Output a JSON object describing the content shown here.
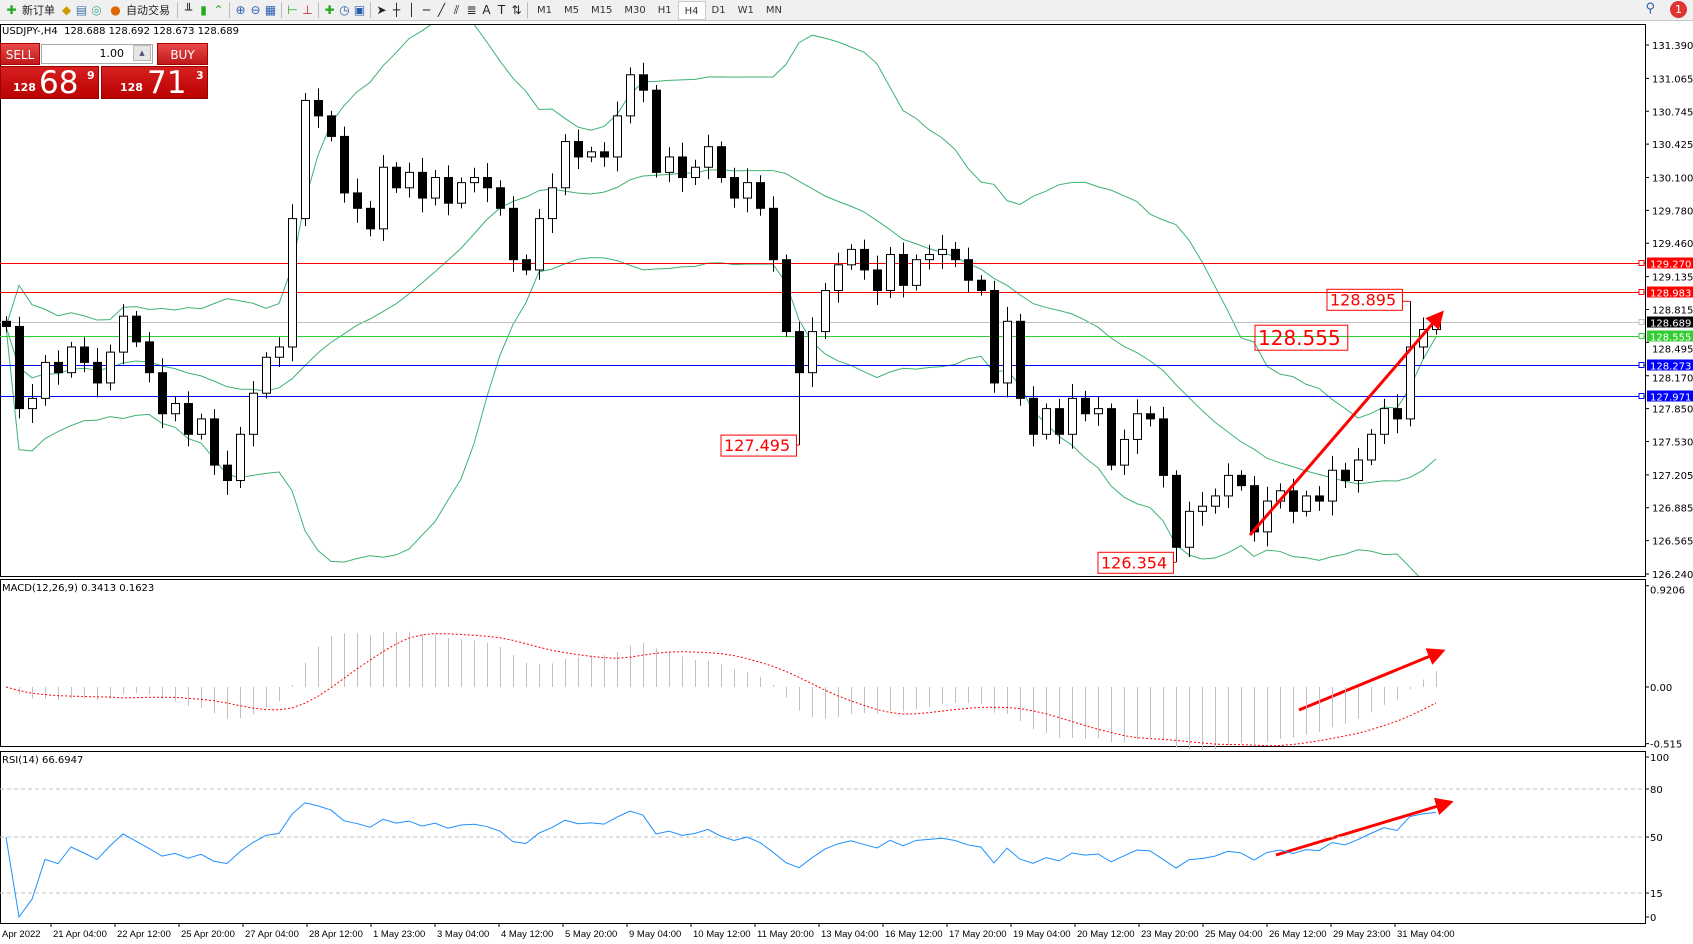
{
  "toolbar": {
    "new_order": "新订单",
    "auto_trading": "自动交易",
    "timeframes": [
      "M1",
      "M5",
      "M15",
      "M30",
      "H1",
      "H4",
      "D1",
      "W1",
      "MN"
    ],
    "active_timeframe": "H4",
    "notifications": "1"
  },
  "chart_header": "USDJPY-,H4  128.688 128.692 128.673 128.689",
  "one_click": {
    "sell": "SELL",
    "buy": "BUY",
    "lot": "1.00",
    "sell_price": {
      "big": "128",
      "main": "68",
      "pip": "9"
    },
    "buy_price": {
      "big": "128",
      "main": "71",
      "pip": "3"
    }
  },
  "chart_data": {
    "type": "candlestick",
    "symbol": "USDJPY-",
    "timeframe": "H4",
    "price_axis": {
      "ticks": [
        "131.390",
        "131.065",
        "130.745",
        "130.425",
        "130.100",
        "129.780",
        "129.460",
        "129.135",
        "128.815",
        "128.495",
        "128.170",
        "127.850",
        "127.530",
        "127.205",
        "126.885",
        "126.565",
        "126.240"
      ],
      "range": [
        126.24,
        131.39
      ]
    },
    "closes": [
      128.65,
      127.85,
      127.95,
      128.3,
      128.2,
      128.45,
      128.3,
      128.1,
      128.4,
      128.75,
      128.5,
      128.2,
      127.8,
      127.9,
      127.6,
      127.75,
      127.3,
      127.15,
      127.6,
      128.0,
      128.35,
      128.45,
      129.7,
      130.85,
      130.7,
      130.5,
      129.95,
      129.8,
      129.6,
      130.2,
      130.0,
      130.15,
      129.9,
      130.1,
      129.85,
      130.05,
      130.1,
      130.0,
      129.8,
      129.3,
      129.2,
      129.7,
      130.0,
      130.45,
      130.3,
      130.35,
      130.3,
      130.7,
      131.1,
      130.95,
      130.15,
      130.3,
      130.1,
      130.2,
      130.4,
      130.1,
      129.9,
      130.05,
      129.8,
      129.3,
      128.6,
      128.2,
      128.6,
      129.0,
      129.25,
      129.4,
      129.2,
      129.0,
      129.35,
      129.05,
      129.3,
      129.35,
      129.4,
      129.3,
      129.1,
      129.0,
      128.1,
      128.7,
      127.95,
      127.6,
      127.85,
      127.6,
      127.95,
      127.8,
      127.85,
      127.3,
      127.55,
      127.8,
      127.75,
      127.2,
      126.5,
      126.85,
      126.9,
      127.0,
      127.2,
      127.1,
      126.65,
      126.95,
      127.05,
      126.85,
      127.0,
      126.95,
      127.25,
      127.15,
      127.35,
      127.6,
      127.85,
      127.75,
      128.45,
      128.62,
      128.689
    ],
    "indicators": [
      "Bollinger Bands",
      "MACD(12,26,9)",
      "RSI(14)"
    ],
    "hlines": [
      {
        "price": "129.270",
        "color": "#ff0000"
      },
      {
        "price": "128.983",
        "color": "#ff0000"
      },
      {
        "price": "128.689",
        "color": "#c0c0c0",
        "label_bg": "#000000"
      },
      {
        "price": "128.555",
        "color": "#32cd32"
      },
      {
        "price": "128.273",
        "color": "#0000ff"
      },
      {
        "price": "127.971",
        "color": "#0000ff"
      }
    ],
    "annotations": [
      {
        "text": "128.895",
        "candle": 108,
        "kind": "high"
      },
      {
        "text": "128.555",
        "kind": "line"
      },
      {
        "text": "127.495",
        "candle": 61,
        "kind": "low"
      },
      {
        "text": "126.354",
        "candle": 90,
        "kind": "low"
      }
    ],
    "macd": {
      "label": "MACD(12,26,9) 0.3413 0.1623",
      "ticks": [
        "0.9206",
        "0.00",
        "-0.515"
      ],
      "range": [
        -0.515,
        0.9206
      ]
    },
    "rsi": {
      "label": "RSI(14) 66.6947",
      "ticks": [
        "100",
        "80",
        "50",
        "15",
        "0"
      ],
      "levels": [
        80,
        50,
        15
      ]
    },
    "time_labels": [
      "Apr 2022",
      "21 Apr 04:00",
      "22 Apr 12:00",
      "25 Apr 20:00",
      "27 Apr 04:00",
      "28 Apr 12:00",
      "1 May 23:00",
      "3 May 04:00",
      "4 May 12:00",
      "5 May 20:00",
      "9 May 04:00",
      "10 May 12:00",
      "11 May 20:00",
      "13 May 04:00",
      "16 May 12:00",
      "17 May 20:00",
      "19 May 04:00",
      "20 May 12:00",
      "23 May 20:00",
      "25 May 04:00",
      "26 May 12:00",
      "29 May 23:00",
      "31 May 04:00"
    ],
    "colors": {
      "bull": "#ffffff",
      "bear": "#000000",
      "bands": "#3cb371",
      "arrow": "#ff0000",
      "macd_hist": "#c0c0c0",
      "macd_signal": "#ff0000",
      "rsi": "#1e90ff"
    }
  }
}
